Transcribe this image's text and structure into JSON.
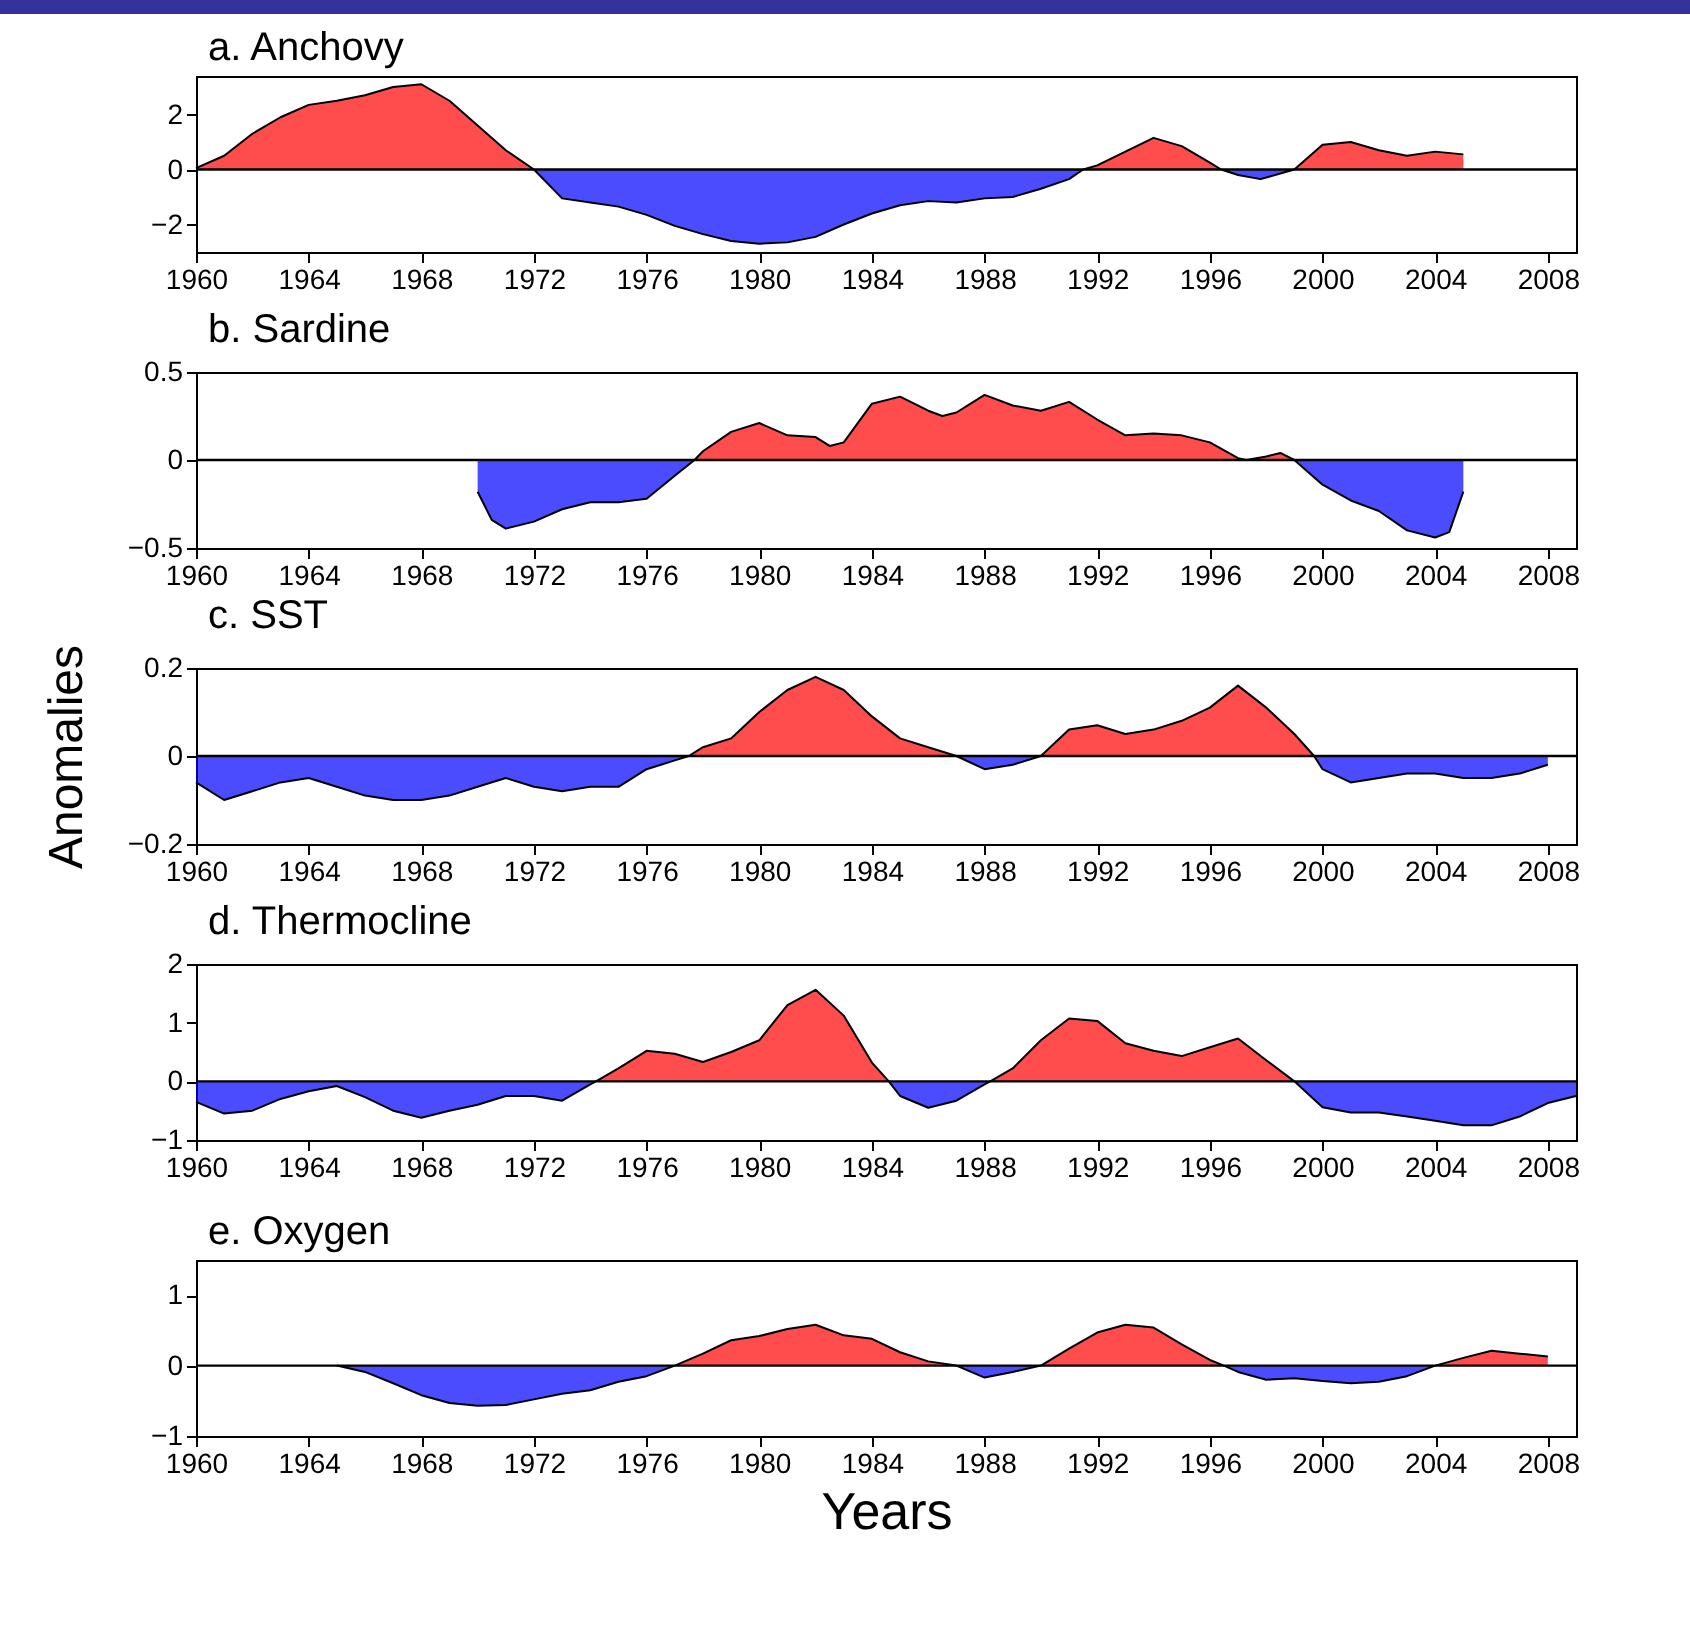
{
  "chart_data": [
    {
      "type": "area",
      "title": "a. Anchovy",
      "x": [
        1960,
        1961,
        1962,
        1963,
        1964,
        1965,
        1966,
        1967,
        1968,
        1969,
        1970,
        1971,
        1972,
        1973,
        1974,
        1975,
        1976,
        1977,
        1978,
        1979,
        1980,
        1981,
        1982,
        1983,
        1984,
        1985,
        1986,
        1987,
        1988,
        1989,
        1990,
        1991,
        1991.5,
        1992,
        1993,
        1994,
        1995,
        1996,
        1996.4,
        1997,
        1997.8,
        1999,
        2000,
        2001,
        2002,
        2003,
        2004,
        2005
      ],
      "series": [
        {
          "color": "#ff0000",
          "values": [
            0.05,
            0.5,
            1.3,
            1.9,
            2.35,
            2.5,
            2.7,
            3.0,
            3.1,
            2.5,
            1.6,
            0.7,
            0,
            null,
            null,
            null,
            null,
            null,
            null,
            null,
            null,
            null,
            null,
            null,
            null,
            null,
            null,
            null,
            null,
            null,
            null,
            null,
            0,
            0.15,
            0.65,
            1.15,
            0.85,
            0.25,
            0,
            null,
            null,
            0,
            0.9,
            1.0,
            0.7,
            0.5,
            0.65,
            0.55
          ]
        },
        {
          "color": "#0000ff",
          "values": [
            null,
            null,
            null,
            null,
            null,
            null,
            null,
            null,
            null,
            null,
            null,
            null,
            0,
            -1.05,
            -1.2,
            -1.35,
            -1.65,
            -2.05,
            -2.35,
            -2.6,
            -2.7,
            -2.65,
            -2.45,
            -2.0,
            -1.6,
            -1.3,
            -1.15,
            -1.2,
            -1.05,
            -1.0,
            -0.7,
            -0.35,
            0,
            null,
            null,
            null,
            null,
            null,
            0,
            -0.2,
            -0.35,
            0,
            null,
            null,
            null,
            null,
            null,
            null
          ]
        }
      ],
      "xlim": [
        1960,
        2009
      ],
      "xticks": [
        1960,
        1964,
        1968,
        1972,
        1976,
        1980,
        1984,
        1988,
        1992,
        1996,
        2000,
        2004,
        2008
      ],
      "ylim": [
        -3,
        3.4
      ],
      "yticks": [
        -2,
        0,
        2
      ],
      "ref_lines": [
        {
          "axis": "y",
          "value": 0,
          "color": "#000000"
        }
      ]
    },
    {
      "type": "area",
      "title": "b. Sardine",
      "x": [
        1970,
        1970.5,
        1971,
        1972,
        1973,
        1974,
        1975,
        1976,
        1977,
        1977.7,
        1978,
        1979,
        1980,
        1981,
        1982,
        1982.5,
        1983,
        1984,
        1985,
        1986,
        1986.5,
        1987,
        1988,
        1989,
        1990,
        1991,
        1992,
        1993,
        1994,
        1995,
        1996,
        1997,
        1997.3,
        1998,
        1998.5,
        1999,
        2000,
        2001,
        2002,
        2003,
        2004,
        2004.5,
        2005
      ],
      "series": [
        {
          "color": "#ff0000",
          "values": [
            null,
            null,
            null,
            null,
            null,
            null,
            null,
            null,
            null,
            0,
            0.05,
            0.16,
            0.21,
            0.14,
            0.13,
            0.08,
            0.1,
            0.32,
            0.36,
            0.28,
            0.25,
            0.27,
            0.37,
            0.31,
            0.28,
            0.33,
            0.23,
            0.14,
            0.15,
            0.14,
            0.1,
            0.01,
            0,
            0.02,
            0.04,
            0,
            null,
            null,
            null,
            null,
            null,
            null,
            null
          ]
        },
        {
          "color": "#0000ff",
          "values": [
            -0.18,
            -0.34,
            -0.39,
            -0.35,
            -0.28,
            -0.24,
            -0.24,
            -0.22,
            -0.09,
            0,
            null,
            null,
            null,
            null,
            null,
            null,
            null,
            null,
            null,
            null,
            null,
            null,
            null,
            null,
            null,
            null,
            null,
            null,
            null,
            null,
            null,
            null,
            null,
            null,
            null,
            0,
            -0.14,
            -0.23,
            -0.29,
            -0.4,
            -0.44,
            -0.41,
            -0.18
          ]
        }
      ],
      "xlim": [
        1960,
        2009
      ],
      "xticks": [
        1960,
        1964,
        1968,
        1972,
        1976,
        1980,
        1984,
        1988,
        1992,
        1996,
        2000,
        2004,
        2008
      ],
      "ylim": [
        -0.5,
        0.5
      ],
      "yticks": [
        -0.5,
        0,
        0.5
      ],
      "ref_lines": [
        {
          "axis": "y",
          "value": 0,
          "color": "#000000"
        }
      ]
    },
    {
      "type": "area",
      "title": "c. SST",
      "ylabel": "Anomalies",
      "x": [
        1960,
        1961,
        1962,
        1963,
        1964,
        1965,
        1966,
        1967,
        1968,
        1969,
        1970,
        1971,
        1972,
        1973,
        1974,
        1975,
        1976,
        1977,
        1977.5,
        1978,
        1979,
        1980,
        1981,
        1982,
        1983,
        1984,
        1985,
        1986,
        1987,
        1988,
        1989,
        1990,
        1991,
        1992,
        1993,
        1994,
        1995,
        1996,
        1997,
        1998,
        1999,
        1999.7,
        2000,
        2001,
        2002,
        2003,
        2004,
        2005,
        2006,
        2007,
        2008
      ],
      "series": [
        {
          "color": "#ff0000",
          "values": [
            null,
            null,
            null,
            null,
            null,
            null,
            null,
            null,
            null,
            null,
            null,
            null,
            null,
            null,
            null,
            null,
            null,
            null,
            0,
            0.02,
            0.04,
            0.1,
            0.15,
            0.18,
            0.15,
            0.09,
            0.04,
            0.02,
            0,
            null,
            null,
            0,
            0.06,
            0.07,
            0.05,
            0.06,
            0.08,
            0.11,
            0.16,
            0.11,
            0.05,
            0,
            null,
            null,
            null,
            null,
            null,
            null,
            null,
            null,
            null
          ]
        },
        {
          "color": "#0000ff",
          "values": [
            -0.06,
            -0.1,
            -0.08,
            -0.06,
            -0.05,
            -0.07,
            -0.09,
            -0.1,
            -0.1,
            -0.09,
            -0.07,
            -0.05,
            -0.07,
            -0.08,
            -0.07,
            -0.07,
            -0.03,
            -0.01,
            0,
            null,
            null,
            null,
            null,
            null,
            null,
            null,
            null,
            null,
            0,
            -0.03,
            -0.02,
            0,
            null,
            null,
            null,
            null,
            null,
            null,
            null,
            null,
            null,
            0,
            -0.03,
            -0.06,
            -0.05,
            -0.04,
            -0.04,
            -0.05,
            -0.05,
            -0.04,
            -0.02
          ]
        }
      ],
      "xlim": [
        1960,
        2009
      ],
      "xticks": [
        1960,
        1964,
        1968,
        1972,
        1976,
        1980,
        1984,
        1988,
        1992,
        1996,
        2000,
        2004,
        2008
      ],
      "ylim": [
        -0.2,
        0.2
      ],
      "yticks": [
        -0.2,
        0,
        0.2
      ],
      "ref_lines": [
        {
          "axis": "y",
          "value": 0,
          "color": "#000000"
        }
      ]
    },
    {
      "type": "area",
      "title": "d. Thermocline",
      "x": [
        1960,
        1961,
        1962,
        1963,
        1964,
        1965,
        1966,
        1967,
        1968,
        1969,
        1970,
        1971,
        1972,
        1973,
        1974,
        1974.2,
        1975,
        1976,
        1977,
        1978,
        1979,
        1980,
        1981,
        1982,
        1983,
        1984,
        1984.6,
        1985,
        1986,
        1987,
        1988,
        1988.2,
        1989,
        1990,
        1991,
        1992,
        1993,
        1994,
        1995,
        1996,
        1997,
        1998,
        1999,
        2000,
        2001,
        2002,
        2003,
        2004,
        2005,
        2006,
        2007,
        2008,
        2009
      ],
      "series": [
        {
          "color": "#ff0000",
          "values": [
            null,
            null,
            null,
            null,
            null,
            null,
            null,
            null,
            null,
            null,
            null,
            null,
            null,
            null,
            null,
            0,
            0.22,
            0.52,
            0.47,
            0.33,
            0.5,
            0.7,
            1.3,
            1.56,
            1.12,
            0.32,
            0,
            null,
            null,
            null,
            null,
            0,
            0.22,
            0.7,
            1.07,
            1.03,
            0.65,
            0.52,
            0.43,
            0.58,
            0.73,
            0.36,
            0,
            null,
            null,
            null,
            null,
            null,
            null,
            null,
            null,
            null,
            null
          ]
        },
        {
          "color": "#0000ff",
          "values": [
            -0.35,
            -0.55,
            -0.5,
            -0.3,
            -0.17,
            -0.08,
            -0.27,
            -0.5,
            -0.62,
            -0.5,
            -0.4,
            -0.25,
            -0.25,
            -0.33,
            -0.05,
            0,
            null,
            null,
            null,
            null,
            null,
            null,
            null,
            null,
            null,
            null,
            0,
            -0.25,
            -0.45,
            -0.33,
            -0.05,
            0,
            null,
            null,
            null,
            null,
            null,
            null,
            null,
            null,
            null,
            null,
            0,
            -0.44,
            -0.53,
            -0.53,
            -0.6,
            -0.67,
            -0.75,
            -0.75,
            -0.6,
            -0.37,
            -0.25
          ]
        }
      ],
      "xlim": [
        1960,
        2009
      ],
      "xticks": [
        1960,
        1964,
        1968,
        1972,
        1976,
        1980,
        1984,
        1988,
        1992,
        1996,
        2000,
        2004,
        2008
      ],
      "ylim": [
        -1,
        2
      ],
      "yticks": [
        -1,
        0,
        1,
        2
      ],
      "ref_lines": [
        {
          "axis": "y",
          "value": 0,
          "color": "#000000"
        }
      ]
    },
    {
      "type": "area",
      "title": "e. Oxygen",
      "xlabel": "Years",
      "x": [
        1965,
        1966,
        1967,
        1968,
        1969,
        1970,
        1971,
        1972,
        1973,
        1974,
        1975,
        1976,
        1977,
        1978,
        1979,
        1980,
        1981,
        1982,
        1983,
        1984,
        1985,
        1986,
        1987,
        1988,
        1989,
        1990,
        1991,
        1992,
        1993,
        1994,
        1995,
        1996,
        1996.5,
        1997,
        1998,
        1999,
        2000,
        2001,
        2002,
        2003,
        2004,
        2005,
        2006,
        2007,
        2008
      ],
      "series": [
        {
          "color": "#ff0000",
          "values": [
            null,
            null,
            null,
            null,
            null,
            null,
            null,
            null,
            null,
            null,
            null,
            null,
            0,
            0.17,
            0.36,
            0.42,
            0.52,
            0.58,
            0.43,
            0.38,
            0.19,
            0.06,
            0,
            null,
            null,
            0,
            0.24,
            0.47,
            0.58,
            0.54,
            0.3,
            0.08,
            0,
            null,
            null,
            null,
            null,
            null,
            null,
            null,
            0,
            0.11,
            0.21,
            0.17,
            0.13
          ]
        },
        {
          "color": "#0000ff",
          "values": [
            0,
            -0.09,
            -0.25,
            -0.42,
            -0.53,
            -0.57,
            -0.56,
            -0.48,
            -0.4,
            -0.35,
            -0.23,
            -0.15,
            0,
            null,
            null,
            null,
            null,
            null,
            null,
            null,
            null,
            null,
            0,
            -0.17,
            -0.09,
            0,
            null,
            null,
            null,
            null,
            null,
            null,
            0,
            -0.09,
            -0.2,
            -0.18,
            -0.22,
            -0.25,
            -0.23,
            -0.15,
            0,
            null,
            null,
            null,
            null
          ]
        }
      ],
      "xlim": [
        1960,
        2009
      ],
      "xticks": [
        1960,
        1964,
        1968,
        1972,
        1976,
        1980,
        1984,
        1988,
        1992,
        1996,
        2000,
        2004,
        2008
      ],
      "ylim": [
        -1,
        1.5
      ],
      "yticks": [
        -1,
        0,
        1
      ],
      "ref_lines": [
        {
          "axis": "y",
          "value": 0,
          "color": "#000000"
        }
      ]
    }
  ]
}
